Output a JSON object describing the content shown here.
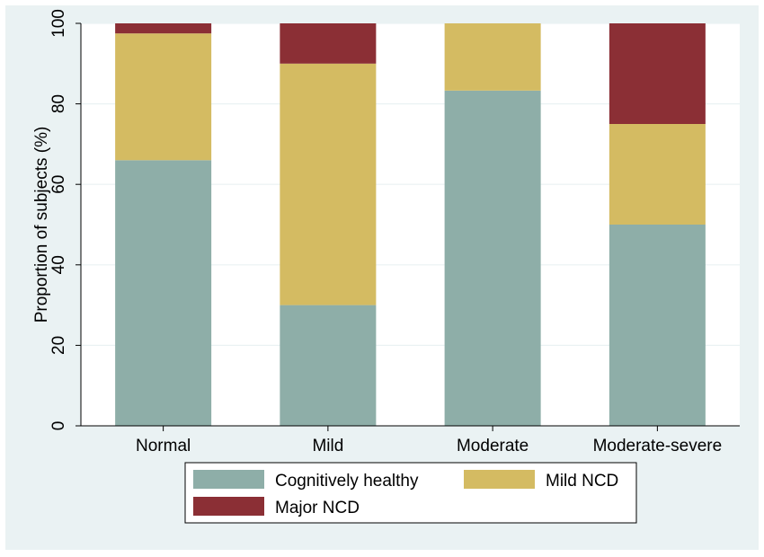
{
  "chart_data": {
    "type": "bar",
    "stacked": true,
    "title": "",
    "xlabel": "",
    "ylabel": "Proportion of subjects (%)",
    "ylim": [
      0,
      100
    ],
    "yticks": [
      0,
      20,
      40,
      60,
      80,
      100
    ],
    "grid": true,
    "categories": [
      "Normal",
      "Mild",
      "Moderate",
      "Moderate-severe"
    ],
    "series": [
      {
        "name": "Cognitively healthy",
        "color": "#8eaea8",
        "values": [
          66,
          30,
          83.3,
          50
        ]
      },
      {
        "name": "Mild NCD",
        "color": "#d4bb62",
        "values": [
          31.5,
          60,
          16.7,
          25
        ]
      },
      {
        "name": "Major NCD",
        "color": "#8b2f35",
        "values": [
          2.5,
          10,
          0,
          25
        ]
      }
    ],
    "legend_position": "bottom"
  },
  "colors": {
    "outer_background": "#eaf2f3",
    "plot_background": "#ffffff",
    "gridline": "#eaf2f3"
  }
}
